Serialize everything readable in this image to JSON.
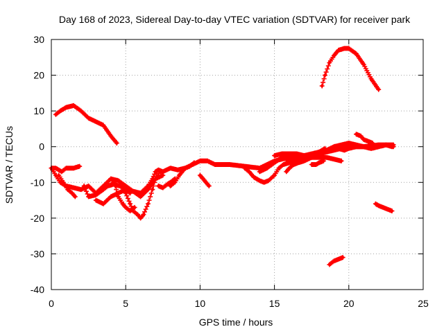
{
  "chart_data": {
    "type": "scatter",
    "title": "Day 168 of 2023, Sidereal Day-to-day VTEC variation (SDTVAR) for receiver park",
    "xlabel": "GPS time / hours",
    "ylabel": "SDTVAR / TECUs",
    "xlim": [
      0,
      25
    ],
    "ylim": [
      -40,
      30
    ],
    "xticks": [
      0,
      5,
      10,
      15,
      20,
      25
    ],
    "yticks": [
      -40,
      -30,
      -20,
      -10,
      0,
      10,
      20,
      30
    ],
    "grid": true,
    "legend": "none",
    "marker": "plus",
    "color": "#ff0000",
    "series": [
      {
        "name": "track-1",
        "x": [
          0.3,
          0.6,
          1.0,
          1.5,
          2.0,
          2.5,
          3.0,
          3.5,
          4.0,
          4.4
        ],
        "y": [
          9,
          10,
          11,
          11.5,
          10,
          8,
          7,
          6,
          3,
          1
        ]
      },
      {
        "name": "track-2",
        "x": [
          0.0,
          0.3,
          0.7,
          1.0,
          1.5,
          1.9
        ],
        "y": [
          -6,
          -6,
          -7,
          -6,
          -6,
          -5.5
        ]
      },
      {
        "name": "track-3",
        "x": [
          0.0,
          0.3,
          0.6,
          1.0,
          1.5,
          2.0,
          2.5,
          3.0,
          3.5,
          4.0,
          4.5,
          5.0,
          5.5,
          6.0,
          6.5,
          6.8,
          7.0,
          7.2,
          7.5,
          8.0,
          8.5,
          9.0,
          9.5,
          10.0,
          10.5,
          11.0,
          12.0,
          13.0,
          14.0,
          15.0,
          16.0,
          17.0,
          18.0,
          19.0,
          20.0,
          21.0,
          22.0,
          23.0
        ],
        "y": [
          -6,
          -8,
          -10,
          -11,
          -11.5,
          -12,
          -11,
          -13,
          -11,
          -9,
          -9.5,
          -11,
          -12.5,
          -13,
          -11,
          -9,
          -7,
          -6.5,
          -7,
          -6,
          -6.5,
          -6,
          -5,
          -4,
          -4,
          -5,
          -5,
          -5.5,
          -6,
          -4,
          -3,
          -2.5,
          -2,
          -1,
          0,
          0,
          0.5,
          0.5
        ]
      },
      {
        "name": "track-4",
        "x": [
          0.5,
          0.8,
          1.1,
          1.4,
          1.6
        ],
        "y": [
          -8,
          -10,
          -12,
          -13,
          -14
        ]
      },
      {
        "name": "track-5",
        "x": [
          2.2,
          2.5,
          3.0,
          3.5,
          3.8,
          4.2,
          4.6,
          5.0,
          5.3
        ],
        "y": [
          -11,
          -14,
          -13.5,
          -12,
          -11,
          -10.5,
          -11,
          -12,
          -13
        ]
      },
      {
        "name": "track-6",
        "x": [
          3.0,
          3.5,
          4.0,
          4.5,
          5.0,
          5.5,
          6.0,
          6.5,
          7.0,
          7.5
        ],
        "y": [
          -15,
          -16,
          -14,
          -13,
          -12,
          -12.5,
          -14,
          -12,
          -9,
          -8
        ]
      },
      {
        "name": "track-7",
        "x": [
          5.0,
          5.3,
          5.5,
          5.8,
          6.0,
          6.2,
          6.5,
          6.8,
          7.0,
          7.3
        ],
        "y": [
          -13,
          -16,
          -18,
          -19,
          -20,
          -19,
          -16,
          -12,
          -9,
          -7
        ]
      },
      {
        "name": "track-8",
        "x": [
          4.0,
          4.3,
          4.5,
          4.8,
          5.0,
          5.3,
          5.6
        ],
        "y": [
          -9,
          -11,
          -14,
          -16,
          -17,
          -18,
          -17
        ]
      },
      {
        "name": "track-9",
        "x": [
          7.2,
          7.5,
          7.8,
          8.0,
          8.3
        ],
        "y": [
          -11,
          -11.5,
          -10.5,
          -10,
          -9
        ]
      },
      {
        "name": "track-10",
        "x": [
          8.0,
          8.3,
          8.6,
          9.0,
          9.3,
          9.6
        ],
        "y": [
          -11,
          -10,
          -8,
          -6,
          -5.5,
          -4.5
        ]
      },
      {
        "name": "track-11",
        "x": [
          10.0,
          10.2,
          10.4,
          10.6
        ],
        "y": [
          -8,
          -9,
          -10,
          -11
        ]
      },
      {
        "name": "track-12",
        "x": [
          13.0,
          13.3,
          13.6,
          14.0,
          14.3,
          14.6,
          15.0,
          15.3,
          15.6,
          16.0,
          16.5,
          17.0,
          17.5,
          18.0,
          18.5,
          19.0,
          19.5
        ],
        "y": [
          -6,
          -7,
          -8.5,
          -9.5,
          -10,
          -9.5,
          -8,
          -6,
          -5,
          -4.5,
          -4,
          -3.5,
          -3,
          -3,
          -3,
          -3.5,
          -4
        ]
      },
      {
        "name": "track-13",
        "x": [
          14.0,
          14.5,
          15.0,
          15.5,
          16.0,
          16.5,
          17.0
        ],
        "y": [
          -7,
          -6,
          -4.5,
          -3,
          -2,
          -2,
          -2.5
        ]
      },
      {
        "name": "track-14",
        "x": [
          15.0,
          15.5,
          16.0,
          16.5,
          17.0,
          17.5,
          18.0,
          18.4
        ],
        "y": [
          -2.5,
          -2,
          -2,
          -2.5,
          -2.5,
          -2,
          -1.5,
          -0.5
        ]
      },
      {
        "name": "track-15",
        "x": [
          15.5,
          15.8,
          16.0,
          16.3,
          16.6
        ],
        "y": [
          -3,
          -3.5,
          -4,
          -3.5,
          -3
        ]
      },
      {
        "name": "track-16",
        "x": [
          15.8,
          16.0,
          16.3,
          16.6,
          17.0,
          17.5,
          18.0,
          18.5,
          19.0,
          19.5,
          20.0,
          20.5,
          21.0,
          21.5,
          22.0,
          22.5,
          23.0
        ],
        "y": [
          -7,
          -6,
          -5,
          -4.5,
          -4,
          -3,
          -2,
          -1,
          0,
          0.5,
          1,
          0.5,
          0,
          -0.5,
          0,
          0.5,
          0
        ]
      },
      {
        "name": "track-17",
        "x": [
          17.5,
          17.8,
          18.0,
          18.3
        ],
        "y": [
          -5,
          -5,
          -4.5,
          -4
        ]
      },
      {
        "name": "track-18",
        "x": [
          18.2,
          18.4,
          18.7,
          19.0,
          19.3,
          19.7,
          20.0,
          20.5,
          21.0,
          21.5,
          22.0
        ],
        "y": [
          17,
          20,
          23.5,
          25.5,
          27,
          27.5,
          27.5,
          26,
          23,
          19,
          16
        ]
      },
      {
        "name": "track-19",
        "x": [
          19.0,
          19.3,
          19.7,
          20.0,
          20.5,
          21.0,
          21.5,
          22.0,
          22.5,
          22.9
        ],
        "y": [
          0,
          -0.5,
          -1,
          -0.5,
          0,
          0,
          -0.5,
          0,
          0.5,
          0
        ]
      },
      {
        "name": "track-20",
        "x": [
          20.5,
          20.8,
          21.0,
          21.3,
          21.6
        ],
        "y": [
          3.5,
          3,
          2,
          1.5,
          1
        ]
      },
      {
        "name": "track-21",
        "x": [
          21.8,
          22.0,
          22.3,
          22.6,
          22.9
        ],
        "y": [
          -16,
          -16.5,
          -17,
          -17.5,
          -18
        ]
      },
      {
        "name": "track-22",
        "x": [
          18.7,
          19.0,
          19.3,
          19.6
        ],
        "y": [
          -33,
          -32,
          -31.5,
          -31
        ]
      }
    ]
  }
}
